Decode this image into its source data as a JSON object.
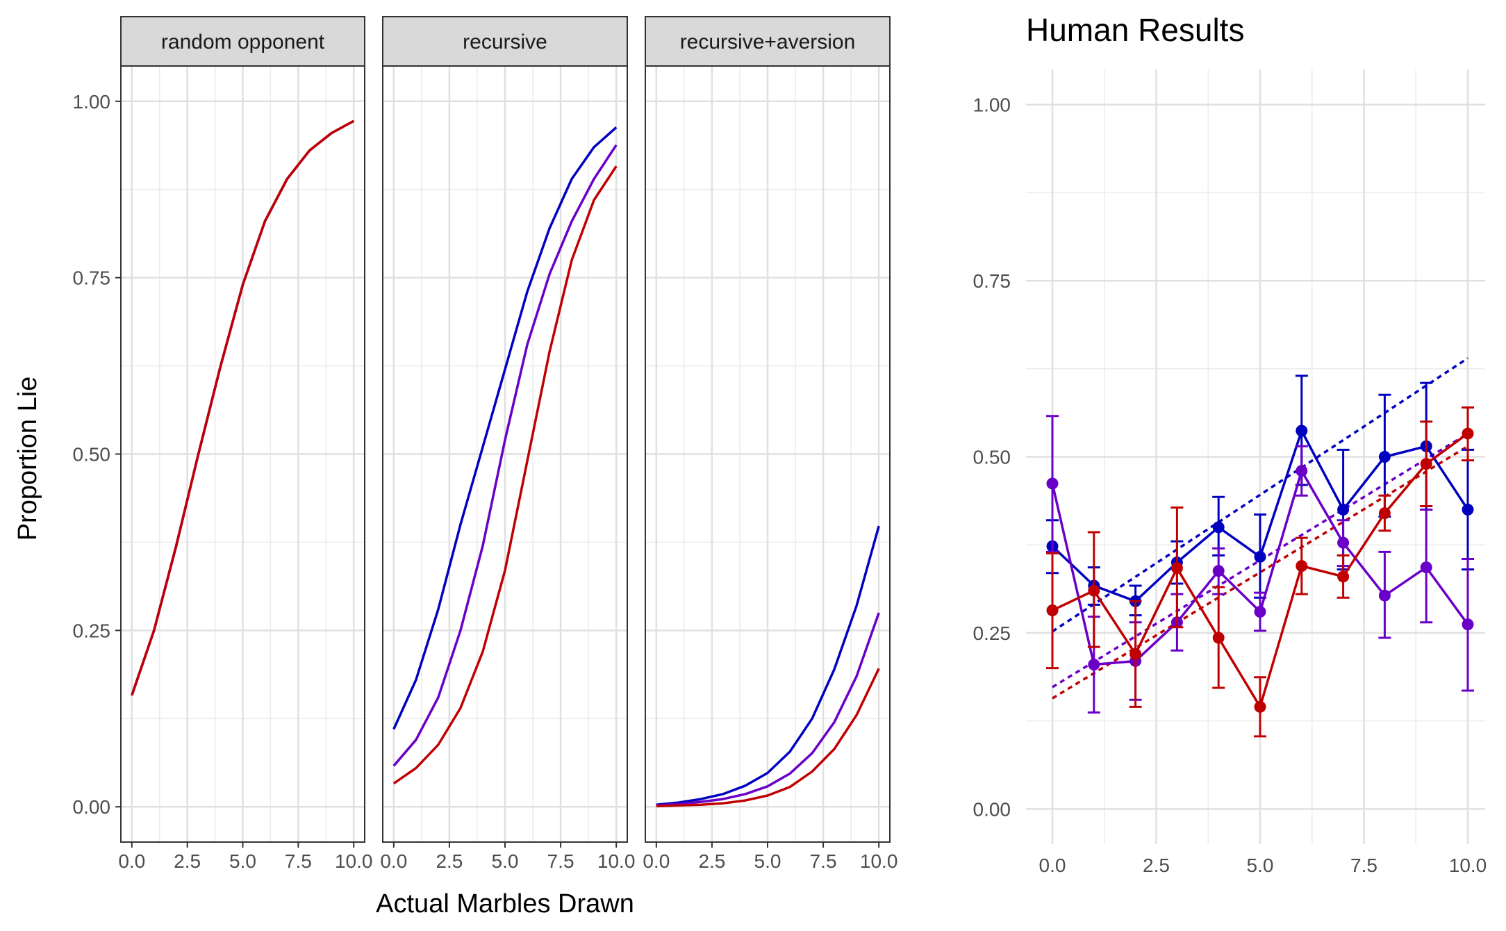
{
  "chart_data": [
    {
      "type": "line",
      "panels": [
        "random opponent",
        "recursive",
        "recursive+aversion"
      ],
      "xlabel": "Actual Marbles Drawn",
      "ylabel": "Proportion Lie",
      "xlim": [
        0,
        10
      ],
      "ylim": [
        -0.05,
        1.05
      ],
      "x_ticks": [
        "0.0",
        "2.5",
        "5.0",
        "7.5",
        "10.0"
      ],
      "y_ticks": [
        "0.00",
        "0.25",
        "0.50",
        "0.75",
        "1.00"
      ],
      "x": [
        0,
        1,
        2,
        3,
        4,
        5,
        6,
        7,
        8,
        9,
        10
      ],
      "series": [
        {
          "color": "#0000c0",
          "panels": [
            [
              0.158,
              0.25,
              0.37,
              0.5,
              0.625,
              0.74,
              0.83,
              0.89,
              0.93,
              0.955,
              0.972
            ],
            [
              0.11,
              0.18,
              0.28,
              0.4,
              0.51,
              0.62,
              0.73,
              0.82,
              0.89,
              0.935,
              0.963
            ],
            [
              0.003,
              0.006,
              0.011,
              0.018,
              0.03,
              0.048,
              0.078,
              0.125,
              0.195,
              0.285,
              0.398
            ]
          ]
        },
        {
          "color": "#6a00c8",
          "panels": [
            [
              0.158,
              0.25,
              0.37,
              0.5,
              0.625,
              0.74,
              0.83,
              0.89,
              0.93,
              0.955,
              0.972
            ],
            [
              0.058,
              0.095,
              0.155,
              0.25,
              0.37,
              0.52,
              0.655,
              0.755,
              0.83,
              0.89,
              0.938
            ],
            [
              0.002,
              0.004,
              0.007,
              0.011,
              0.018,
              0.029,
              0.047,
              0.076,
              0.12,
              0.185,
              0.275
            ]
          ]
        },
        {
          "color": "#c00000",
          "panels": [
            [
              0.158,
              0.25,
              0.37,
              0.5,
              0.625,
              0.74,
              0.83,
              0.89,
              0.93,
              0.955,
              0.972
            ],
            [
              0.033,
              0.055,
              0.088,
              0.14,
              0.22,
              0.335,
              0.49,
              0.645,
              0.775,
              0.86,
              0.908
            ],
            [
              0.001,
              0.002,
              0.003,
              0.005,
              0.009,
              0.016,
              0.028,
              0.05,
              0.082,
              0.13,
              0.196
            ]
          ]
        }
      ]
    },
    {
      "type": "line",
      "title": "Human Results",
      "xlim": [
        0,
        10
      ],
      "ylim": [
        -0.05,
        1.05
      ],
      "x_ticks": [
        "0.0",
        "2.5",
        "5.0",
        "7.5",
        "10.0"
      ],
      "y_ticks": [
        "0.00",
        "0.25",
        "0.50",
        "0.75",
        "1.00"
      ],
      "x": [
        0,
        1,
        2,
        3,
        4,
        5,
        6,
        7,
        8,
        9,
        10
      ],
      "series": [
        {
          "color": "#0000c0",
          "values": [
            0.373,
            0.317,
            0.295,
            0.35,
            0.4,
            0.358,
            0.537,
            0.425,
            0.5,
            0.515,
            0.425
          ],
          "ymin": [
            0.335,
            0.29,
            0.275,
            0.32,
            0.36,
            0.3,
            0.46,
            0.34,
            0.415,
            0.425,
            0.34
          ],
          "ymax": [
            0.41,
            0.343,
            0.317,
            0.38,
            0.443,
            0.418,
            0.615,
            0.51,
            0.588,
            0.605,
            0.51
          ],
          "trend": [
            0.252,
            0.64
          ]
        },
        {
          "color": "#6a00c8",
          "values": [
            0.462,
            0.205,
            0.21,
            0.265,
            0.338,
            0.28,
            0.48,
            0.378,
            0.303,
            0.343,
            0.262
          ],
          "ymin": [
            0.365,
            0.137,
            0.155,
            0.225,
            0.305,
            0.253,
            0.445,
            0.345,
            0.243,
            0.265,
            0.168
          ],
          "ymax": [
            0.558,
            0.273,
            0.265,
            0.305,
            0.37,
            0.307,
            0.515,
            0.41,
            0.365,
            0.425,
            0.355
          ],
          "trend": [
            0.173,
            0.533
          ]
        },
        {
          "color": "#c00000",
          "values": [
            0.282,
            0.31,
            0.22,
            0.342,
            0.243,
            0.145,
            0.345,
            0.33,
            0.42,
            0.49,
            0.533
          ],
          "ymin": [
            0.2,
            0.23,
            0.145,
            0.258,
            0.172,
            0.103,
            0.305,
            0.3,
            0.395,
            0.43,
            0.495
          ],
          "ymax": [
            0.363,
            0.393,
            0.295,
            0.428,
            0.315,
            0.187,
            0.385,
            0.36,
            0.445,
            0.55,
            0.57
          ],
          "trend": [
            0.157,
            0.515
          ]
        }
      ]
    }
  ]
}
